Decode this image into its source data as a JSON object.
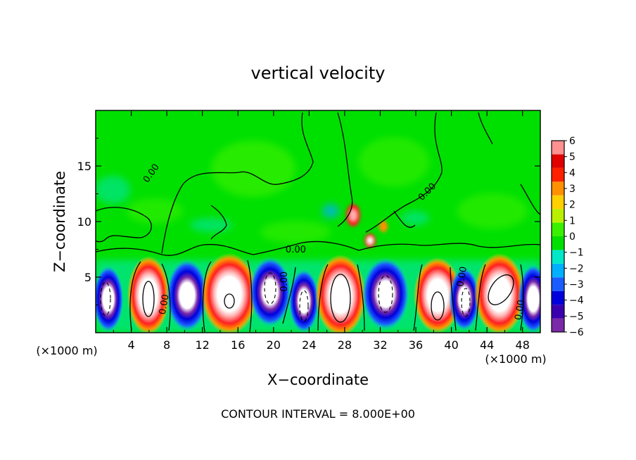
{
  "chart_data": {
    "type": "heatmap",
    "title": "vertical velocity",
    "xlabel": "X−coordinate",
    "ylabel": "Z−coordinate",
    "x_unit_left": "(×1000 m)",
    "x_unit_right": "(×1000 m)",
    "xlim": [
      0,
      50
    ],
    "ylim": [
      0,
      20
    ],
    "x_ticks": [
      4,
      8,
      12,
      16,
      20,
      24,
      28,
      32,
      36,
      40,
      44,
      48
    ],
    "y_ticks": [
      5,
      10,
      15
    ],
    "colorbar": {
      "min": -6,
      "max": 6,
      "ticks": [
        "6",
        "5",
        "4",
        "3",
        "2",
        "1",
        "0",
        "−1",
        "−2",
        "−3",
        "−4",
        "−5",
        "−6"
      ],
      "colors": [
        "#7a2aa8",
        "#3a00b0",
        "#0000dd",
        "#1a5cff",
        "#00b0ff",
        "#00e8c8",
        "#00e000",
        "#39f000",
        "#b8f000",
        "#ffd000",
        "#ff9000",
        "#ff2000",
        "#e00000",
        "#ff9090"
      ]
    },
    "contour_labels": [
      {
        "text": "0.00",
        "x": 6.5,
        "z": 14.2,
        "rotate": -55
      },
      {
        "text": "0.00",
        "x": 22.5,
        "z": 7.2,
        "rotate": 0
      },
      {
        "text": "0.00",
        "x": 21.5,
        "z": 4.6,
        "rotate": -90
      },
      {
        "text": "0.00",
        "x": 8.0,
        "z": 2.5,
        "rotate": -80
      },
      {
        "text": "0.00",
        "x": 37.5,
        "z": 12.5,
        "rotate": -45
      },
      {
        "text": "0.00",
        "x": 41.5,
        "z": 5.0,
        "rotate": -80
      },
      {
        "text": "0.00",
        "x": 48.0,
        "z": 2.0,
        "rotate": -80
      }
    ],
    "footer": "CONTOUR INTERVAL = 8.000E+00"
  }
}
